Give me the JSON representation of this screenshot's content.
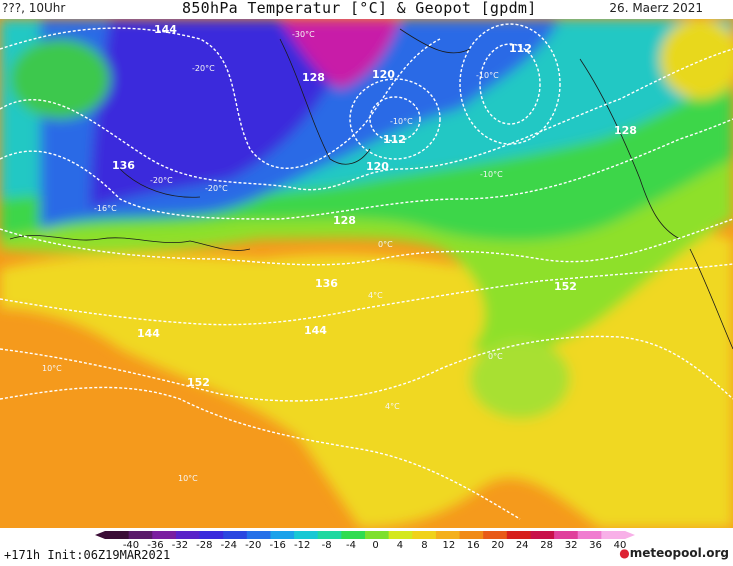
{
  "header": {
    "left": "???, 10Uhr",
    "title": "850hPa Temperatur [°C] & Geopot [gpdm]",
    "date": "26. Maerz 2021"
  },
  "map": {
    "contour_labels": [
      "144",
      "128",
      "120",
      "112",
      "136",
      "120",
      "112",
      "128",
      "128",
      "136",
      "152",
      "144",
      "144",
      "152",
      "120"
    ],
    "temp_labels": [
      "-30°C",
      "-20°C",
      "-20°C",
      "-20°C",
      "-10°C",
      "-10°C",
      "-10°C",
      "0°C",
      "4°C",
      "0°C",
      "4°C",
      "10°C",
      "10°C",
      "-16°C"
    ]
  },
  "legend": {
    "ticks": [
      "-40",
      "-36",
      "-32",
      "-28",
      "-24",
      "-20",
      "-16",
      "-12",
      "-8",
      "-4",
      "0",
      "4",
      "8",
      "12",
      "16",
      "20",
      "24",
      "28",
      "32",
      "36",
      "40"
    ],
    "colors": [
      "#3a0d36",
      "#5a1a6a",
      "#7a1ea0",
      "#5a22c8",
      "#3a2adc",
      "#2b46e0",
      "#2670e8",
      "#1aa2ea",
      "#18c8d4",
      "#20d8a0",
      "#30dc50",
      "#7ee02c",
      "#d4e81e",
      "#f0d21a",
      "#f4b01c",
      "#f08a18",
      "#e85a18",
      "#d6201c",
      "#c8104a",
      "#e0409c",
      "#f07cd0",
      "#f8b0e8"
    ]
  },
  "footer": {
    "run": "+171h Init:06Z19MAR2021",
    "logo": "meteopool.org"
  }
}
